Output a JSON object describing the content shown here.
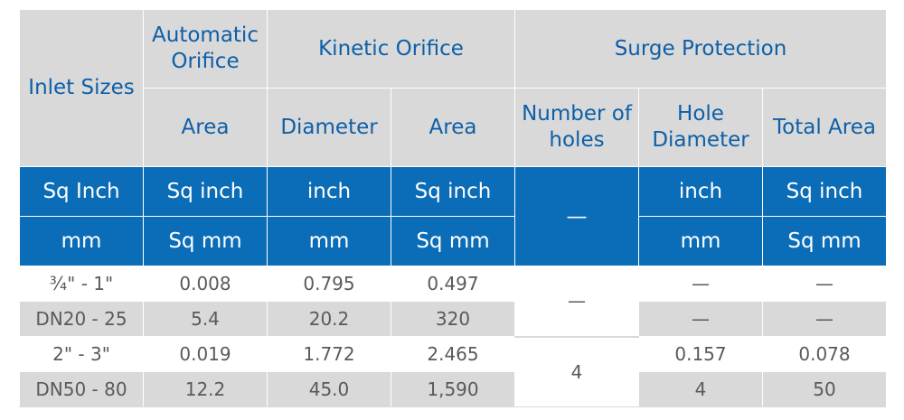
{
  "headers": {
    "inlet_sizes": "Inlet Sizes",
    "automatic_orifice": "Automatic Orifice",
    "kinetic_orifice": "Kinetic Orifice",
    "surge_protection": "Surge Protection",
    "auto_area": "Area",
    "kinetic_diameter": "Diameter",
    "kinetic_area": "Area",
    "number_of_holes": "Number of holes",
    "hole_diameter": "Hole Diameter",
    "total_area": "Total Area"
  },
  "units_imperial": {
    "inlet": "Sq Inch",
    "auto_area": "Sq inch",
    "kinetic_diameter": "inch",
    "kinetic_area": "Sq inch",
    "holes": "—",
    "hole_diameter": "inch",
    "total_area": "Sq inch"
  },
  "units_metric": {
    "inlet": "mm",
    "auto_area": "Sq mm",
    "kinetic_diameter": "mm",
    "kinetic_area": "Sq mm",
    "hole_diameter": "mm",
    "total_area": "Sq mm"
  },
  "rows": [
    {
      "inlet": "¾\" - 1\"",
      "auto_area": "0.008",
      "kin_diameter": "0.795",
      "kin_area": "0.497",
      "holes": "—",
      "hole_diameter": "—",
      "total_area": "—"
    },
    {
      "inlet": "DN20 - 25",
      "auto_area": "5.4",
      "kin_diameter": "20.2",
      "kin_area": "320",
      "hole_diameter": "—",
      "total_area": "—"
    },
    {
      "inlet": "2\" - 3\"",
      "auto_area": "0.019",
      "kin_diameter": "1.772",
      "kin_area": "2.465",
      "holes": "4",
      "hole_diameter": "0.157",
      "total_area": "0.078"
    },
    {
      "inlet": "DN50 - 80",
      "auto_area": "12.2",
      "kin_diameter": "45.0",
      "kin_area": "1,590",
      "hole_diameter": "4",
      "total_area": "50"
    }
  ],
  "colors": {
    "header_bg": "#d9d9d9",
    "header_text": "#0d5fa8",
    "unit_bg": "#0b6db7",
    "body_text": "#5a5a5a"
  }
}
